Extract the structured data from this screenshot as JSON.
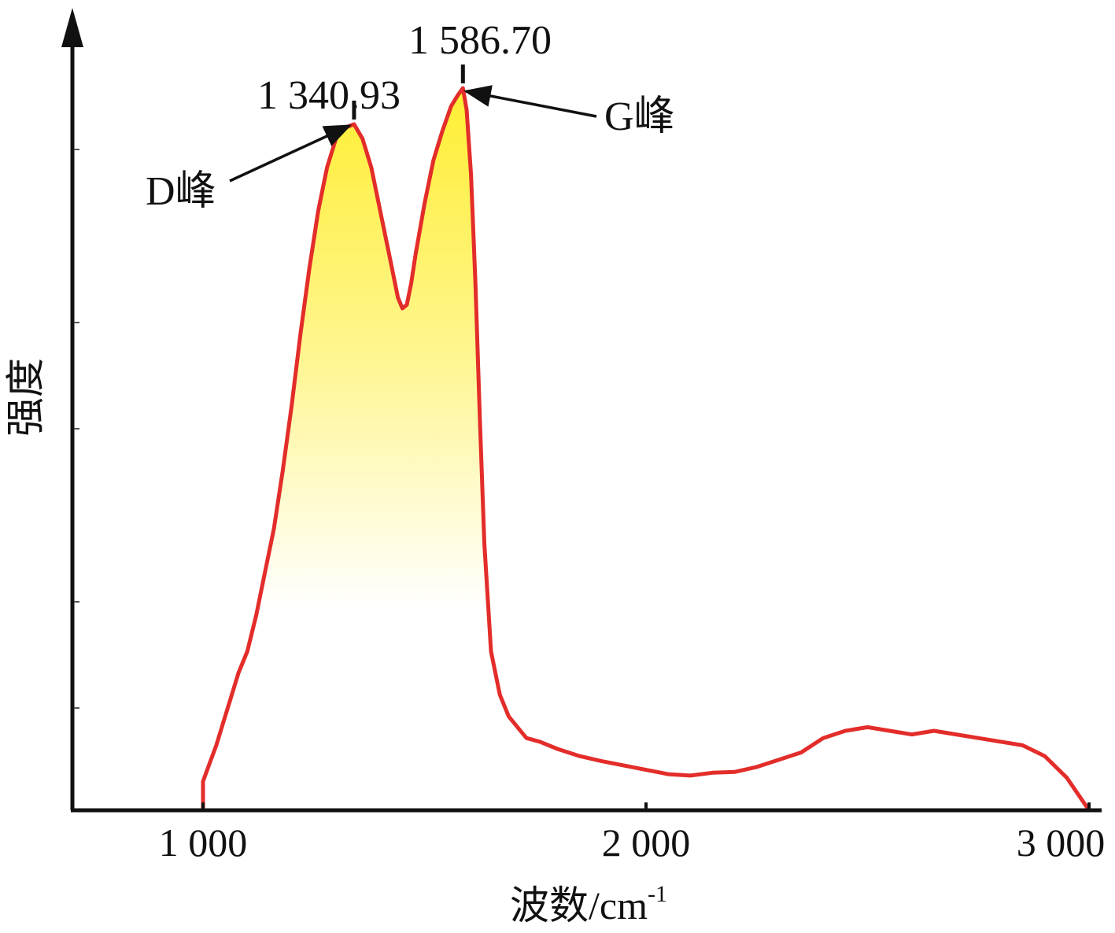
{
  "chart_data": {
    "type": "area",
    "title": "",
    "xlabel": "波数/cm",
    "xlabel_superscript": "-1",
    "ylabel": "强度",
    "x_ticks": [
      {
        "value": 1000,
        "label": "1 000"
      },
      {
        "value": 2000,
        "label": "2 000"
      },
      {
        "value": 3000,
        "label": "3 000"
      }
    ],
    "xlim": [
      710,
      3010
    ],
    "ylim": [
      0,
      100
    ],
    "grid": false,
    "legend": "none",
    "colors": {
      "line": "#e32d2a",
      "fill_top": "#ffee33",
      "fill_bottom": "#ffffff",
      "axis": "#111111"
    },
    "series": [
      {
        "x": [
          1000,
          1015,
          1030,
          1045,
          1060,
          1080,
          1100,
          1120,
          1140,
          1160,
          1180,
          1200,
          1220,
          1240,
          1260,
          1280,
          1300,
          1320,
          1340.93,
          1360,
          1380,
          1400,
          1420,
          1440,
          1450,
          1460,
          1470,
          1480,
          1500,
          1520,
          1540,
          1560,
          1575,
          1586.7,
          1595,
          1605,
          1615,
          1625,
          1635,
          1650,
          1670,
          1690,
          1710,
          1730,
          1760,
          1800,
          1850,
          1900,
          1950,
          2000,
          2050,
          2100,
          2150,
          2200,
          2250,
          2300,
          2350,
          2400,
          2450,
          2500,
          2550,
          2600,
          2650,
          2700,
          2750,
          2800,
          2850,
          2900,
          2950,
          3000
        ],
        "y": [
          4,
          6.5,
          9,
          12,
          15,
          19,
          22,
          27,
          33,
          39,
          47,
          56,
          66,
          75,
          83,
          89,
          93,
          94.5,
          95,
          93,
          89,
          83,
          77,
          71,
          69.5,
          70,
          73,
          77,
          84,
          90,
          94,
          97.5,
          99,
          100,
          97,
          88,
          73,
          54,
          37,
          22,
          16,
          13,
          11.5,
          10,
          9.5,
          8.5,
          7.5,
          6.8,
          6.2,
          5.6,
          5,
          4.8,
          5.2,
          5.3,
          6,
          7,
          8,
          10,
          11,
          11.5,
          11,
          10.5,
          11,
          10.5,
          10,
          9.5,
          9,
          7.5,
          4.5,
          0
        ]
      }
    ],
    "annotations": [
      {
        "x": 1340.93,
        "y": 95,
        "value_label": "1 340.93",
        "name": "D峰"
      },
      {
        "x": 1586.7,
        "y": 100,
        "value_label": "1 586.70",
        "name": "G峰"
      }
    ]
  }
}
